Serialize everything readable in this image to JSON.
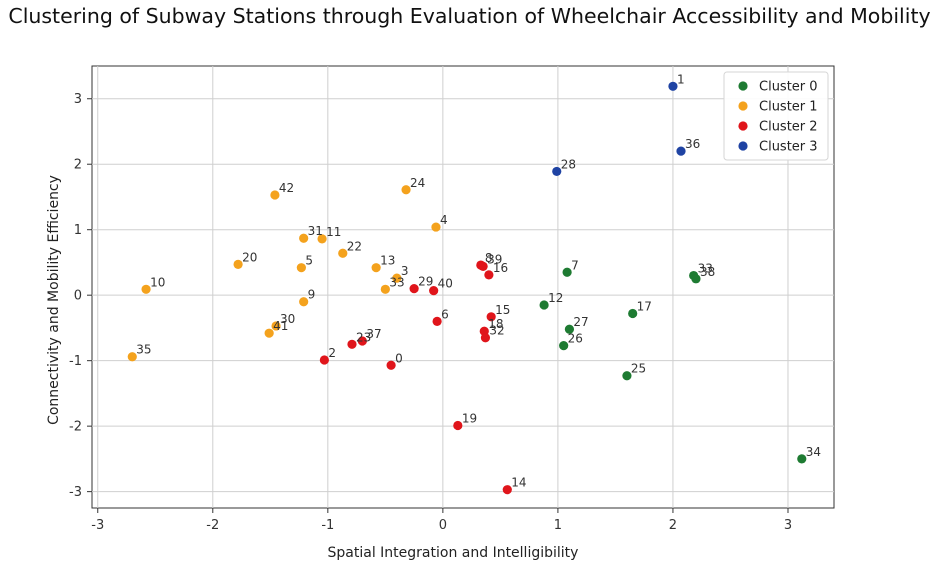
{
  "chart_data": {
    "type": "scatter",
    "title": "Clustering of Subway Stations through Evaluation of Wheelchair Accessibility and Mobility",
    "xlabel": "Spatial Integration and Intelligibility",
    "ylabel": "Connectivity and Mobility Efficiency",
    "xlim": [
      -3.05,
      3.4
    ],
    "ylim": [
      -3.25,
      3.5
    ],
    "xticks": [
      -3,
      -2,
      -1,
      0,
      1,
      2,
      3
    ],
    "yticks": [
      -3,
      -2,
      -1,
      0,
      1,
      2,
      3
    ],
    "xtick_labels": [
      "-3",
      "-2",
      "-1",
      "0",
      "1",
      "2",
      "3"
    ],
    "ytick_labels": [
      "-3",
      "-2",
      "-1",
      "0",
      "1",
      "2",
      "3"
    ],
    "grid": true,
    "legend_position": "top-right",
    "series": [
      {
        "name": "Cluster 0",
        "color": "#1e7b32",
        "points": [
          {
            "label": "7",
            "x": 1.08,
            "y": 0.35
          },
          {
            "label": "12",
            "x": 0.88,
            "y": -0.15
          },
          {
            "label": "17",
            "x": 1.65,
            "y": -0.28
          },
          {
            "label": "27",
            "x": 1.1,
            "y": -0.52
          },
          {
            "label": "26",
            "x": 1.05,
            "y": -0.77
          },
          {
            "label": "25",
            "x": 1.6,
            "y": -1.23
          },
          {
            "label": "33",
            "x": 2.18,
            "y": 0.3
          },
          {
            "label": "38",
            "x": 2.2,
            "y": 0.25
          },
          {
            "label": "34",
            "x": 3.12,
            "y": -2.5
          }
        ]
      },
      {
        "name": "Cluster 1",
        "color": "#f4a21d",
        "points": [
          {
            "label": "42",
            "x": -1.46,
            "y": 1.53
          },
          {
            "label": "24",
            "x": -0.32,
            "y": 1.61
          },
          {
            "label": "4",
            "x": -0.06,
            "y": 1.04
          },
          {
            "label": "31",
            "x": -1.21,
            "y": 0.87
          },
          {
            "label": "11",
            "x": -1.05,
            "y": 0.86
          },
          {
            "label": "22",
            "x": -0.87,
            "y": 0.64
          },
          {
            "label": "20",
            "x": -1.78,
            "y": 0.47
          },
          {
            "label": "5",
            "x": -1.23,
            "y": 0.42
          },
          {
            "label": "13",
            "x": -0.58,
            "y": 0.42
          },
          {
            "label": "3",
            "x": -0.4,
            "y": 0.26
          },
          {
            "label": "33",
            "x": -0.5,
            "y": 0.09
          },
          {
            "label": "10",
            "x": -2.58,
            "y": 0.09
          },
          {
            "label": "9",
            "x": -1.21,
            "y": -0.1
          },
          {
            "label": "30",
            "x": -1.45,
            "y": -0.47
          },
          {
            "label": "41",
            "x": -1.51,
            "y": -0.58
          },
          {
            "label": "35",
            "x": -2.7,
            "y": -0.94
          }
        ]
      },
      {
        "name": "Cluster 2",
        "color": "#e0151b",
        "points": [
          {
            "label": "8",
            "x": 0.33,
            "y": 0.46
          },
          {
            "label": "39",
            "x": 0.35,
            "y": 0.44
          },
          {
            "label": "16",
            "x": 0.4,
            "y": 0.31
          },
          {
            "label": "29",
            "x": -0.25,
            "y": 0.1
          },
          {
            "label": "40",
            "x": -0.08,
            "y": 0.07
          },
          {
            "label": "15",
            "x": 0.42,
            "y": -0.33
          },
          {
            "label": "6",
            "x": -0.05,
            "y": -0.4
          },
          {
            "label": "18",
            "x": 0.36,
            "y": -0.55
          },
          {
            "label": "32",
            "x": 0.37,
            "y": -0.65
          },
          {
            "label": "37",
            "x": -0.7,
            "y": -0.7
          },
          {
            "label": "23",
            "x": -0.79,
            "y": -0.75
          },
          {
            "label": "2",
            "x": -1.03,
            "y": -0.99
          },
          {
            "label": "0",
            "x": -0.45,
            "y": -1.07
          },
          {
            "label": "19",
            "x": 0.13,
            "y": -1.99
          },
          {
            "label": "14",
            "x": 0.56,
            "y": -2.97
          }
        ]
      },
      {
        "name": "Cluster 3",
        "color": "#1f43a3",
        "points": [
          {
            "label": "1",
            "x": 2.0,
            "y": 3.19
          },
          {
            "label": "36",
            "x": 2.07,
            "y": 2.2
          },
          {
            "label": "28",
            "x": 0.99,
            "y": 1.89
          }
        ]
      }
    ]
  }
}
